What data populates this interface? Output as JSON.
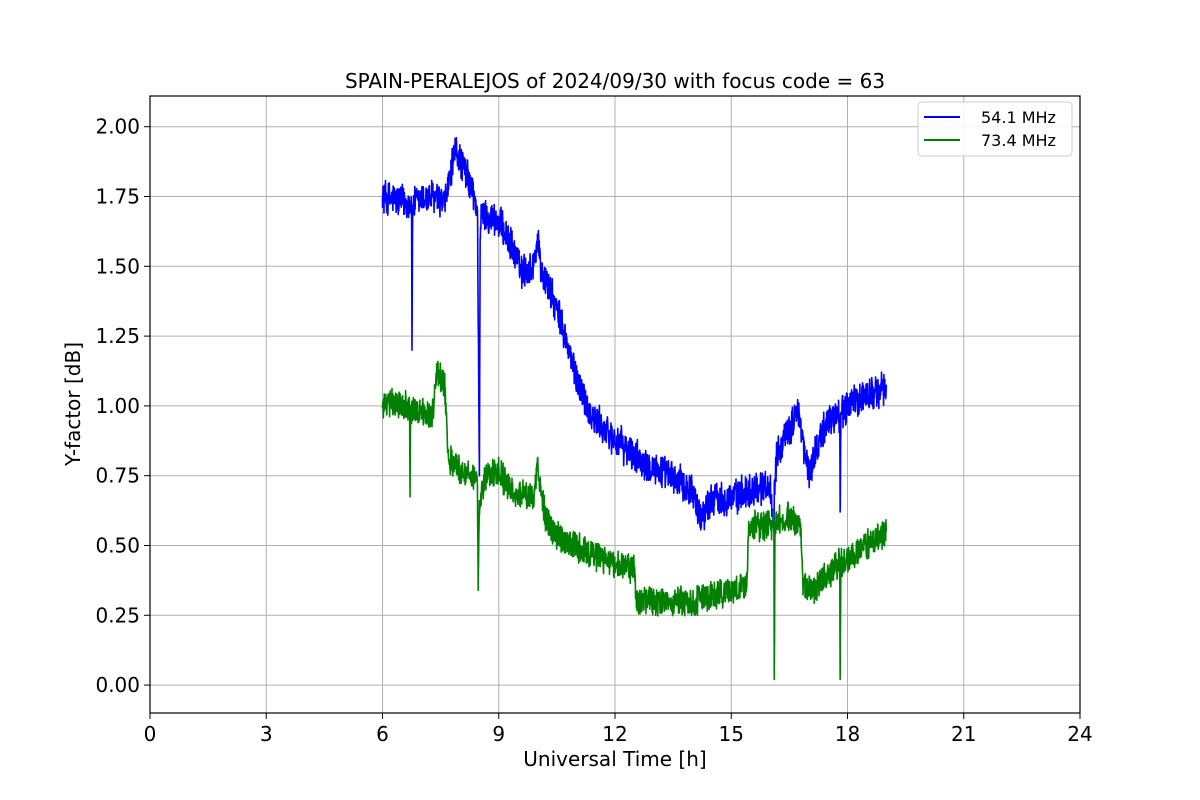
{
  "chart_data": {
    "type": "line",
    "title": "SPAIN-PERALEJOS of 2024/09/30 with focus code = 63",
    "xlabel": "Universal Time [h]",
    "ylabel": "Y-factor [dB]",
    "xlim": [
      0,
      24
    ],
    "ylim": [
      -0.1,
      2.11
    ],
    "xticks": [
      0,
      3,
      6,
      9,
      12,
      15,
      18,
      21,
      24
    ],
    "xtick_labels": [
      "0",
      "3",
      "6",
      "9",
      "12",
      "15",
      "18",
      "21",
      "24"
    ],
    "yticks": [
      0.0,
      0.25,
      0.5,
      0.75,
      1.0,
      1.25,
      1.5,
      1.75,
      2.0
    ],
    "ytick_labels": [
      "0.00",
      "0.25",
      "0.50",
      "0.75",
      "1.00",
      "1.25",
      "1.50",
      "1.75",
      "2.00"
    ],
    "grid": true,
    "legend_position": "top-right",
    "series": [
      {
        "name": "54.1 MHz",
        "color": "#0000ff",
        "noise": 0.07,
        "x": [
          6.0,
          6.3,
          6.6,
          6.75,
          6.76,
          6.78,
          7.0,
          7.3,
          7.6,
          7.8,
          7.9,
          8.1,
          8.3,
          8.45,
          8.5,
          8.52,
          8.55,
          8.7,
          9.0,
          9.3,
          9.6,
          9.9,
          10.0,
          10.1,
          10.3,
          10.6,
          11.0,
          11.4,
          12.0,
          12.5,
          13.0,
          13.5,
          14.0,
          14.2,
          14.5,
          15.0,
          15.5,
          16.0,
          16.1,
          16.11,
          16.2,
          16.5,
          16.7,
          16.9,
          17.0,
          17.2,
          17.5,
          17.8,
          17.81,
          17.83,
          18.0,
          18.5,
          19.0
        ],
        "y": [
          1.75,
          1.74,
          1.73,
          1.72,
          1.2,
          1.72,
          1.74,
          1.75,
          1.72,
          1.86,
          1.92,
          1.85,
          1.78,
          1.7,
          0.78,
          1.6,
          1.68,
          1.68,
          1.66,
          1.58,
          1.48,
          1.5,
          1.6,
          1.48,
          1.42,
          1.3,
          1.1,
          0.96,
          0.88,
          0.82,
          0.78,
          0.74,
          0.7,
          0.6,
          0.67,
          0.67,
          0.7,
          0.72,
          0.55,
          0.72,
          0.85,
          0.9,
          1.0,
          0.82,
          0.76,
          0.85,
          0.95,
          0.97,
          0.62,
          0.97,
          1.0,
          1.04,
          1.06
        ]
      },
      {
        "name": "73.4 MHz",
        "color": "#008000",
        "noise": 0.06,
        "x": [
          6.0,
          6.3,
          6.6,
          6.7,
          6.71,
          6.73,
          7.0,
          7.3,
          7.4,
          7.6,
          7.7,
          8.0,
          8.4,
          8.45,
          8.47,
          8.5,
          8.7,
          9.0,
          9.3,
          9.6,
          9.9,
          10.0,
          10.2,
          10.5,
          11.0,
          11.5,
          12.0,
          12.5,
          12.55,
          13.0,
          13.5,
          14.0,
          14.5,
          15.0,
          15.4,
          15.45,
          15.8,
          16.1,
          16.11,
          16.13,
          16.5,
          16.8,
          16.85,
          17.2,
          17.5,
          17.8,
          17.81,
          17.83,
          18.0,
          18.5,
          19.0
        ],
        "y": [
          1.0,
          1.01,
          1.0,
          0.98,
          0.7,
          0.98,
          0.98,
          0.97,
          1.12,
          1.08,
          0.82,
          0.77,
          0.74,
          0.72,
          0.38,
          0.66,
          0.77,
          0.76,
          0.7,
          0.68,
          0.66,
          0.78,
          0.6,
          0.53,
          0.5,
          0.46,
          0.43,
          0.42,
          0.3,
          0.3,
          0.3,
          0.3,
          0.32,
          0.34,
          0.35,
          0.58,
          0.56,
          0.58,
          0.02,
          0.58,
          0.6,
          0.56,
          0.35,
          0.35,
          0.4,
          0.44,
          0.02,
          0.44,
          0.45,
          0.5,
          0.55
        ]
      }
    ]
  }
}
